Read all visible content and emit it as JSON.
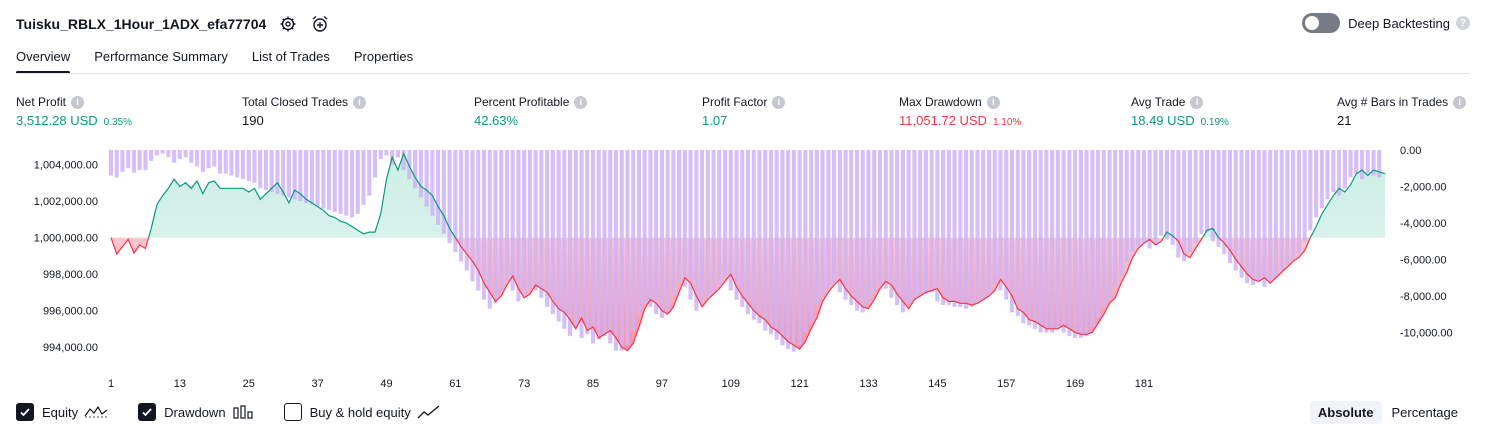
{
  "header": {
    "title": "Tuisku_RBLX_1Hour_1ADX_efa77704",
    "deep_backtesting_label": "Deep Backtesting",
    "help_symbol": "?"
  },
  "tabs": [
    {
      "label": "Overview",
      "active": true
    },
    {
      "label": "Performance Summary",
      "active": false
    },
    {
      "label": "List of Trades",
      "active": false
    },
    {
      "label": "Properties",
      "active": false
    }
  ],
  "metrics": [
    {
      "label": "Net Profit",
      "value": "3,512.28 USD",
      "pct": "0.35%",
      "tone": "pos"
    },
    {
      "label": "Total Closed Trades",
      "value": "190",
      "pct": "",
      "tone": "neutral"
    },
    {
      "label": "Percent Profitable",
      "value": "42.63%",
      "pct": "",
      "tone": "pos"
    },
    {
      "label": "Profit Factor",
      "value": "1.07",
      "pct": "",
      "tone": "pos"
    },
    {
      "label": "Max Drawdown",
      "value": "11,051.72 USD",
      "pct": "1.10%",
      "tone": "neg"
    },
    {
      "label": "Avg Trade",
      "value": "18.49 USD",
      "pct": "0.19%",
      "tone": "pos"
    },
    {
      "label": "Avg # Bars in Trades",
      "value": "21",
      "pct": "",
      "tone": "neutral"
    }
  ],
  "legend": {
    "equity_label": "Equity",
    "drawdown_label": "Drawdown",
    "buyhold_label": "Buy & hold equity",
    "equity_checked": true,
    "drawdown_checked": true,
    "buyhold_checked": false
  },
  "modes": {
    "absolute_label": "Absolute",
    "percentage_label": "Percentage",
    "active": "Absolute"
  },
  "colors": {
    "positive": "#089981",
    "negative": "#f23645",
    "drawdown_bar": "#cfb3f5",
    "equity_fill_pos": "#cdeee5",
    "equity_fill_neg": "#f590a8"
  },
  "icons": [
    "settings-icon",
    "alarm-add-icon",
    "info-icon",
    "checkmark-icon",
    "equity-line-icon",
    "drawdown-bars-icon",
    "trend-line-icon"
  ],
  "chart_data": {
    "type": "line",
    "x_ticks": [
      1,
      13,
      25,
      37,
      49,
      61,
      73,
      85,
      97,
      109,
      121,
      133,
      145,
      157,
      169,
      181
    ],
    "x_range": [
      1,
      190
    ],
    "equity_ylim": [
      993400,
      1004800
    ],
    "equity_baseline": 1000000,
    "equity_ticks": [
      "1,004,000.00",
      "1,002,000.00",
      "1,000,000.00",
      "998,000.00",
      "996,000.00",
      "994,000.00"
    ],
    "equity_tick_values": [
      1004000,
      1002000,
      1000000,
      998000,
      996000,
      994000
    ],
    "drawdown_ylim": [
      -11400,
      0
    ],
    "drawdown_ticks": [
      "0.00",
      "-2,000.00",
      "-4,000.00",
      "-6,000.00",
      "-8,000.00",
      "-10,000.00"
    ],
    "drawdown_tick_values": [
      0,
      -2000,
      -4000,
      -6000,
      -8000,
      -10000
    ],
    "series": [
      {
        "name": "Equity",
        "values": [
          1000000,
          999100,
          999500,
          999900,
          999150,
          999600,
          999400,
          1000500,
          1001800,
          1002300,
          1002700,
          1003200,
          1002800,
          1003000,
          1002700,
          1003100,
          1002400,
          1003000,
          1003100,
          1002700,
          1002700,
          1002700,
          1002700,
          1002700,
          1002500,
          1002700,
          1002100,
          1002400,
          1002700,
          1003000,
          1002500,
          1001900,
          1002600,
          1002400,
          1002100,
          1001900,
          1001700,
          1001500,
          1001200,
          1001100,
          1000900,
          1000800,
          1000600,
          1000400,
          1000200,
          1000300,
          1000300,
          1001300,
          1003200,
          1004400,
          1003700,
          1004600,
          1003900,
          1003300,
          1002800,
          1002600,
          1002300,
          1001700,
          1001200,
          1000500,
          1000000,
          999500,
          999100,
          998700,
          998200,
          997500,
          997000,
          996500,
          996800,
          997400,
          997900,
          997200,
          996700,
          996900,
          997400,
          997200,
          997000,
          996500,
          996100,
          995900,
          995500,
          995000,
          995600,
          994900,
          995100,
          994500,
          994700,
          994900,
          994500,
          994000,
          993800,
          994200,
          995100,
          996100,
          996600,
          996400,
          996000,
          995800,
          996200,
          997000,
          997800,
          997500,
          996800,
          996200,
          996600,
          996900,
          997200,
          997600,
          998000,
          997300,
          996800,
          996400,
          996000,
          995700,
          995500,
          995100,
          994900,
          994600,
          994300,
          994100,
          993900,
          994300,
          995000,
          995600,
          996500,
          997000,
          997400,
          997700,
          997200,
          996800,
          996500,
          996200,
          996100,
          996600,
          997200,
          997600,
          997400,
          996900,
          996500,
          996100,
          996600,
          996800,
          997000,
          997100,
          997200,
          996700,
          996500,
          996500,
          996400,
          996400,
          996300,
          996400,
          996600,
          996800,
          997100,
          997700,
          997300,
          996800,
          996100,
          995900,
          995500,
          995400,
          995200,
          995000,
          995000,
          995000,
          995200,
          995000,
          994800,
          994700,
          994700,
          994800,
          995300,
          995800,
          996400,
          996700,
          997500,
          998100,
          998900,
          999400,
          999700,
          999900,
          999600,
          999800,
          1000300,
          1000100,
          999800,
          999100,
          998900,
          999400,
          999900,
          1000400,
          1000500,
          1000000,
          999700,
          999300,
          998800,
          998400,
          998000,
          997700,
          997600,
          997800,
          997500,
          997800,
          998100,
          998400,
          998700,
          998900,
          999300,
          1000000,
          1000600,
          1001300,
          1001800,
          1002300,
          1002700,
          1002500,
          1002900,
          1003500,
          1003700,
          1003400,
          1003700,
          1003600,
          1003500
        ]
      },
      {
        "name": "Drawdown",
        "values": [
          -1400,
          -1500,
          -1200,
          -1000,
          -1250,
          -1100,
          -1100,
          -600,
          -300,
          -200,
          -400,
          -700,
          -500,
          -400,
          -700,
          -900,
          -1200,
          -1000,
          -900,
          -1300,
          -1300,
          -1400,
          -1500,
          -1600,
          -1700,
          -1800,
          -2100,
          -2200,
          -2300,
          -2400,
          -2500,
          -2600,
          -2700,
          -2800,
          -2900,
          -3000,
          -3100,
          -3200,
          -3300,
          -3400,
          -3500,
          -3600,
          -3700,
          -3500,
          -3000,
          -2500,
          -1500,
          -500,
          -300,
          -800,
          -400,
          -1100,
          -1600,
          -2100,
          -2600,
          -3100,
          -3600,
          -4100,
          -4600,
          -5100,
          -5600,
          -6100,
          -6600,
          -7200,
          -7700,
          -8200,
          -8700,
          -8400,
          -7800,
          -7200,
          -7700,
          -8300,
          -8000,
          -7600,
          -7700,
          -8100,
          -8600,
          -9000,
          -9400,
          -9800,
          -10200,
          -9600,
          -10300,
          -10100,
          -10600,
          -10400,
          -10200,
          -10600,
          -11000,
          -11000,
          -10700,
          -9900,
          -8900,
          -8400,
          -8600,
          -9000,
          -9200,
          -8800,
          -8000,
          -7200,
          -7500,
          -8200,
          -8800,
          -8400,
          -8100,
          -7800,
          -7400,
          -7000,
          -7700,
          -8200,
          -8600,
          -9000,
          -9300,
          -9500,
          -9900,
          -10100,
          -10400,
          -10700,
          -10900,
          -11050,
          -10700,
          -10000,
          -9400,
          -8500,
          -8000,
          -7600,
          -7300,
          -7800,
          -8200,
          -8500,
          -8800,
          -8900,
          -8400,
          -7800,
          -7400,
          -7600,
          -8100,
          -8500,
          -8900,
          -8400,
          -8200,
          -8000,
          -7900,
          -7800,
          -8300,
          -8500,
          -8500,
          -8600,
          -8600,
          -8700,
          -8600,
          -8400,
          -8200,
          -7900,
          -7300,
          -7700,
          -8200,
          -8900,
          -9100,
          -9500,
          -9600,
          -9800,
          -10000,
          -10000,
          -10000,
          -9800,
          -10000,
          -10200,
          -10300,
          -10300,
          -10200,
          -9700,
          -9200,
          -8600,
          -8300,
          -7500,
          -6900,
          -6100,
          -5600,
          -5300,
          -5100,
          -5400,
          -5200,
          -4700,
          -4900,
          -5200,
          -5900,
          -6100,
          -5600,
          -5100,
          -4600,
          -4500,
          -5000,
          -5300,
          -5700,
          -6200,
          -6600,
          -7000,
          -7300,
          -7400,
          -7200,
          -7500,
          -7200,
          -6900,
          -6600,
          -6300,
          -6100,
          -5700,
          -5000,
          -4400,
          -3700,
          -3200,
          -2700,
          -2300,
          -2500,
          -2100,
          -1500,
          -1300,
          -1600,
          -1300,
          -1400,
          -1500
        ]
      }
    ]
  }
}
